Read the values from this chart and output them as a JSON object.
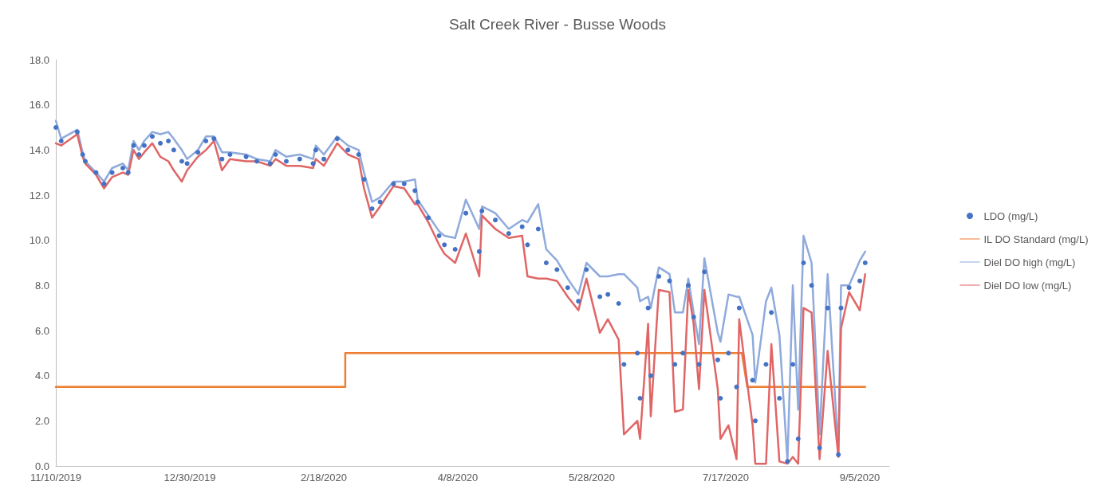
{
  "chart_data": {
    "type": "line",
    "title": "Salt Creek River - Busse Woods",
    "x": [
      "2019-11-10",
      "2019-11-12",
      "2019-11-18",
      "2019-11-20",
      "2019-11-21",
      "2019-11-25",
      "2019-11-28",
      "2019-12-01",
      "2019-12-05",
      "2019-12-07",
      "2019-12-09",
      "2019-12-11",
      "2019-12-13",
      "2019-12-16",
      "2019-12-19",
      "2019-12-22",
      "2019-12-24",
      "2019-12-27",
      "2019-12-29",
      "2020-01-02",
      "2020-01-05",
      "2020-01-08",
      "2020-01-11",
      "2020-01-14",
      "2020-01-20",
      "2020-01-24",
      "2020-01-29",
      "2020-01-31",
      "2020-02-04",
      "2020-02-09",
      "2020-02-14",
      "2020-02-15",
      "2020-02-18",
      "2020-02-23",
      "2020-02-27",
      "2020-03-02",
      "2020-03-04",
      "2020-03-07",
      "2020-03-10",
      "2020-03-15",
      "2020-03-19",
      "2020-03-23",
      "2020-03-24",
      "2020-03-28",
      "2020-04-01",
      "2020-04-03",
      "2020-04-07",
      "2020-04-11",
      "2020-04-16",
      "2020-04-17",
      "2020-04-22",
      "2020-04-27",
      "2020-05-02",
      "2020-05-04",
      "2020-05-08",
      "2020-05-11",
      "2020-05-15",
      "2020-05-19",
      "2020-05-23",
      "2020-05-26",
      "2020-05-31",
      "2020-06-03",
      "2020-06-07",
      "2020-06-09",
      "2020-06-14",
      "2020-06-15",
      "2020-06-18",
      "2020-06-19",
      "2020-06-22",
      "2020-06-26",
      "2020-06-28",
      "2020-07-01",
      "2020-07-03",
      "2020-07-05",
      "2020-07-07",
      "2020-07-09",
      "2020-07-14",
      "2020-07-15",
      "2020-07-18",
      "2020-07-21",
      "2020-07-22",
      "2020-07-27",
      "2020-07-28",
      "2020-08-01",
      "2020-08-03",
      "2020-08-06",
      "2020-08-09",
      "2020-08-11",
      "2020-08-13",
      "2020-08-15",
      "2020-08-18",
      "2020-08-21",
      "2020-08-24",
      "2020-08-28",
      "2020-08-29",
      "2020-09-01",
      "2020-09-05",
      "2020-09-07"
    ],
    "series": [
      {
        "name": "LDO (mg/L)",
        "type": "scatter",
        "marker": "circle",
        "color": "#4472c4",
        "values": [
          15.0,
          14.4,
          14.8,
          13.8,
          13.5,
          13.0,
          12.5,
          13.0,
          13.2,
          13.0,
          14.2,
          13.8,
          14.2,
          14.6,
          14.3,
          14.4,
          14.0,
          13.5,
          13.4,
          13.9,
          14.4,
          14.5,
          13.6,
          13.8,
          13.7,
          13.5,
          13.4,
          13.8,
          13.5,
          13.6,
          13.4,
          14.0,
          13.6,
          14.5,
          14.0,
          13.8,
          12.7,
          11.4,
          11.7,
          12.5,
          12.5,
          12.2,
          11.7,
          11.0,
          10.2,
          9.8,
          9.6,
          11.2,
          9.5,
          11.3,
          10.9,
          10.3,
          10.6,
          9.8,
          10.5,
          9.0,
          8.7,
          7.9,
          7.3,
          8.7,
          7.5,
          7.6,
          7.2,
          4.5,
          5.0,
          3.0,
          7.0,
          4.0,
          8.4,
          8.2,
          4.5,
          5.0,
          8.0,
          6.6,
          4.5,
          8.6,
          4.7,
          3.0,
          5.0,
          3.5,
          7.0,
          3.8,
          2.0,
          4.5,
          6.8,
          3.0,
          0.2,
          4.5,
          1.2,
          9.0,
          8.0,
          0.8,
          7.0,
          0.5,
          7.0,
          7.9,
          8.2,
          9.0
        ]
      },
      {
        "name": "IL DO Standard (mg/L)",
        "color": "#ed7d31",
        "x": [
          "2019-11-10",
          "2020-02-26",
          "2020-02-26",
          "2020-07-23",
          "2020-07-25",
          "2020-09-07"
        ],
        "values": [
          3.5,
          3.5,
          5.0,
          5.0,
          3.5,
          3.5
        ]
      },
      {
        "name": "Diel DO high (mg/L)",
        "color": "#8faadc",
        "values": [
          15.3,
          14.5,
          14.9,
          13.9,
          13.5,
          13.0,
          12.6,
          13.2,
          13.4,
          13.1,
          14.4,
          14.0,
          14.4,
          14.8,
          14.7,
          14.8,
          14.5,
          14.0,
          13.6,
          14.0,
          14.6,
          14.6,
          13.9,
          13.9,
          13.8,
          13.6,
          13.5,
          14.0,
          13.7,
          13.8,
          13.6,
          14.2,
          13.8,
          14.6,
          14.2,
          14.0,
          13.0,
          11.7,
          11.9,
          12.6,
          12.6,
          12.7,
          11.8,
          11.1,
          10.4,
          10.2,
          10.1,
          11.8,
          10.5,
          11.5,
          11.2,
          10.5,
          10.9,
          10.8,
          11.6,
          9.6,
          9.1,
          8.3,
          7.6,
          9.0,
          8.4,
          8.4,
          8.5,
          8.5,
          7.9,
          7.3,
          7.5,
          7.0,
          8.8,
          8.5,
          6.8,
          6.8,
          8.3,
          6.8,
          5.4,
          9.2,
          5.9,
          5.5,
          7.6,
          7.5,
          7.5,
          5.8,
          3.7,
          7.3,
          7.9,
          5.8,
          0.2,
          8.0,
          2.5,
          10.2,
          9.0,
          1.4,
          8.5,
          0.6,
          8.0,
          8.0,
          9.1,
          9.5
        ]
      },
      {
        "name": "Diel DO low (mg/L)",
        "color": "#e06666",
        "values": [
          14.3,
          14.2,
          14.7,
          13.7,
          13.4,
          12.9,
          12.3,
          12.8,
          13.0,
          12.9,
          14.0,
          13.6,
          13.9,
          14.3,
          13.7,
          13.5,
          13.1,
          12.6,
          13.1,
          13.7,
          14.0,
          14.4,
          13.1,
          13.6,
          13.5,
          13.5,
          13.3,
          13.6,
          13.3,
          13.3,
          13.2,
          13.6,
          13.3,
          14.3,
          13.8,
          13.6,
          12.3,
          11.0,
          11.5,
          12.4,
          12.3,
          11.6,
          11.6,
          10.8,
          9.8,
          9.4,
          9.0,
          10.3,
          8.4,
          11.1,
          10.5,
          10.1,
          10.2,
          8.4,
          8.3,
          8.3,
          8.2,
          7.5,
          6.9,
          8.3,
          5.9,
          6.5,
          5.6,
          1.4,
          2.0,
          1.2,
          6.3,
          2.2,
          7.8,
          7.7,
          2.4,
          2.5,
          7.8,
          6.3,
          3.4,
          7.8,
          3.4,
          1.2,
          1.8,
          0.3,
          6.5,
          1.8,
          0.1,
          0.1,
          5.4,
          0.2,
          0.1,
          0.4,
          0.1,
          7.0,
          6.8,
          0.3,
          5.1,
          0.4,
          6.1,
          7.7,
          6.9,
          8.5
        ]
      }
    ],
    "xlim": [
      "2019-11-10",
      "2020-09-16"
    ],
    "xticks": [
      {
        "value": "2019-11-10",
        "label": "11/10/2019"
      },
      {
        "value": "2019-12-30",
        "label": "12/30/2019"
      },
      {
        "value": "2020-02-18",
        "label": "2/18/2020"
      },
      {
        "value": "2020-04-08",
        "label": "4/8/2020"
      },
      {
        "value": "2020-05-28",
        "label": "5/28/2020"
      },
      {
        "value": "2020-07-17",
        "label": "7/17/2020"
      },
      {
        "value": "2020-09-05",
        "label": "9/5/2020"
      }
    ],
    "ylim": [
      0,
      18
    ],
    "yticks": [
      {
        "value": 0,
        "label": "0.0"
      },
      {
        "value": 2,
        "label": "2.0"
      },
      {
        "value": 4,
        "label": "4.0"
      },
      {
        "value": 6,
        "label": "6.0"
      },
      {
        "value": 8,
        "label": "8.0"
      },
      {
        "value": 10,
        "label": "10.0"
      },
      {
        "value": 12,
        "label": "12.0"
      },
      {
        "value": 14,
        "label": "14.0"
      },
      {
        "value": 16,
        "label": "16.0"
      },
      {
        "value": 18,
        "label": "18.0"
      }
    ],
    "grid": false,
    "legend": "right"
  }
}
